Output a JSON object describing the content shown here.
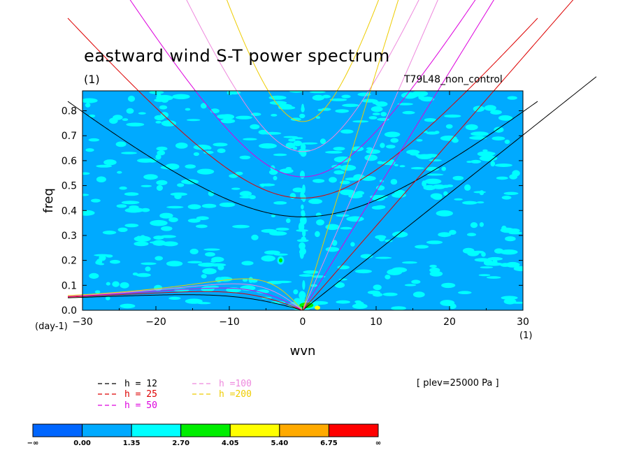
{
  "colors": {
    "background": "#00aaff",
    "h12": "#000000",
    "h25": "#dd0000",
    "h50": "#dd00dd",
    "h100": "#ee88dd",
    "h200": "#eecc00"
  },
  "chart_data": {
    "type": "heatmap",
    "title": "eastward wind S-T power spectrum",
    "subtitle": "(1)",
    "case_label": "T79L48_non_control",
    "xlabel": "wvn",
    "ylabel": "freq",
    "x_unit": "(1)",
    "y_unit": "(day-1)",
    "xlim": [
      -30,
      30
    ],
    "ylim": [
      0,
      0.88
    ],
    "x_ticks": [
      {
        "value": -30,
        "label": "−30"
      },
      {
        "value": -20,
        "label": "−20"
      },
      {
        "value": -10,
        "label": "−10"
      },
      {
        "value": 0,
        "label": "0"
      },
      {
        "value": 10,
        "label": "10"
      },
      {
        "value": 20,
        "label": "20"
      },
      {
        "value": 30,
        "label": "30"
      }
    ],
    "y_ticks": [
      {
        "value": 0.0,
        "label": "0.0"
      },
      {
        "value": 0.1,
        "label": "0.1"
      },
      {
        "value": 0.2,
        "label": "0.2"
      },
      {
        "value": 0.3,
        "label": "0.3"
      },
      {
        "value": 0.4,
        "label": "0.4"
      },
      {
        "value": 0.5,
        "label": "0.5"
      },
      {
        "value": 0.6,
        "label": "0.6"
      },
      {
        "value": 0.7,
        "label": "0.7"
      },
      {
        "value": 0.8,
        "label": "0.8"
      }
    ],
    "plev_label": "[ plev=25000 Pa ]",
    "dispersion_curves": [
      {
        "legend": "h = 12",
        "h": 12,
        "color": "#000000"
      },
      {
        "legend": "h = 25",
        "h": 25,
        "color": "#dd0000"
      },
      {
        "legend": "h = 50",
        "h": 50,
        "color": "#dd00dd"
      },
      {
        "legend": "h =100",
        "h": 100,
        "color": "#ee88dd"
      },
      {
        "legend": "h =200",
        "h": 200,
        "color": "#eecc00"
      }
    ],
    "colorbar": {
      "labels": [
        "−∞",
        "0.00",
        "1.35",
        "2.70",
        "4.05",
        "5.40",
        "6.75",
        "∞"
      ],
      "colors": [
        "#0066ff",
        "#00aaff",
        "#00ffff",
        "#00ee00",
        "#ffff00",
        "#ffaa00",
        "#ff0000"
      ]
    },
    "field": {
      "background_level_color": "#00aaff",
      "patch_color": "#00ffff",
      "peak_color": "#00ee00",
      "max_color": "#ffff00"
    }
  }
}
